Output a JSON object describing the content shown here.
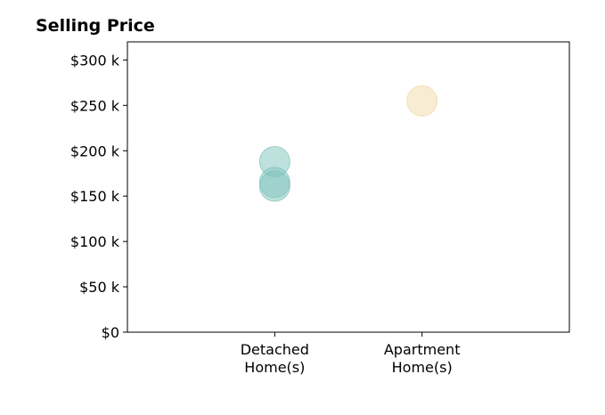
{
  "chart_data": {
    "type": "scatter",
    "title": "Selling Price",
    "xlabel": "",
    "ylabel": "",
    "categories": [
      "Detached Home(s)",
      "Apartment Home(s)"
    ],
    "category_label_lines": [
      [
        "Detached",
        "Home(s)"
      ],
      [
        "Apartment",
        "Home(s)"
      ]
    ],
    "x_range": [
      -1,
      2
    ],
    "ylim": [
      0,
      320000
    ],
    "y_ticks": [
      0,
      50000,
      100000,
      150000,
      200000,
      250000,
      300000
    ],
    "y_tick_labels": [
      "$0",
      "$50 k",
      "$100 k",
      "$150 k",
      "$200 k",
      "$250 k",
      "$300 k"
    ],
    "grid": false,
    "legend": "none",
    "points": [
      {
        "category": "Detached Home(s)",
        "value": 188000,
        "color": "#7fc4bb"
      },
      {
        "category": "Detached Home(s)",
        "value": 165000,
        "color": "#7fc4bb"
      },
      {
        "category": "Detached Home(s)",
        "value": 161000,
        "color": "#7fc4bb"
      },
      {
        "category": "Apartment Home(s)",
        "value": 255000,
        "color": "#f2d9a6"
      }
    ]
  }
}
